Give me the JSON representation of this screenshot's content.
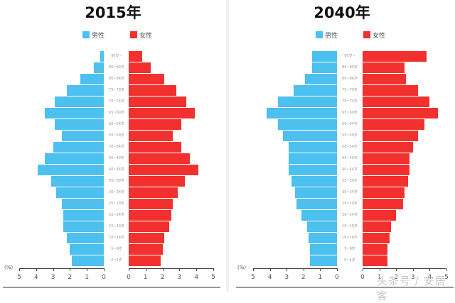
{
  "chart_data": [
    {
      "type": "bar",
      "subtype": "population-pyramid",
      "title": "2015年",
      "legend": [
        "男性",
        "女性"
      ],
      "colors": {
        "male": "#4cc0ee",
        "female": "#f2312e"
      },
      "unit_label": "(%)",
      "xlim": [
        0,
        5
      ],
      "ticks": [
        5,
        4,
        3,
        2,
        1,
        0,
        0,
        1,
        2,
        3,
        4,
        5
      ],
      "categories": [
        "90岁~",
        "85~89岁",
        "80~84岁",
        "75~79岁",
        "70~74岁",
        "65~69岁",
        "60~64岁",
        "55~59岁",
        "50~54岁",
        "45~49岁",
        "40~44岁",
        "35~39岁",
        "30~34岁",
        "25~29岁",
        "20~24岁",
        "15~19岁",
        "10~14岁",
        "5~9岁",
        "0~4岁"
      ],
      "series": [
        {
          "name": "男性",
          "values": [
            0.2,
            0.6,
            1.4,
            2.2,
            2.9,
            3.5,
            2.9,
            2.5,
            3.0,
            3.5,
            3.9,
            3.1,
            2.8,
            2.5,
            2.4,
            2.4,
            2.2,
            2.0,
            1.9
          ]
        },
        {
          "name": "女性",
          "values": [
            0.8,
            1.3,
            2.1,
            2.8,
            3.4,
            3.9,
            3.1,
            2.6,
            3.1,
            3.6,
            4.1,
            3.3,
            2.9,
            2.6,
            2.5,
            2.4,
            2.1,
            2.0,
            1.9
          ]
        }
      ]
    },
    {
      "type": "bar",
      "subtype": "population-pyramid",
      "title": "2040年",
      "legend": [
        "男性",
        "女性"
      ],
      "colors": {
        "male": "#4cc0ee",
        "female": "#f2312e"
      },
      "unit_label": "(%)",
      "xlim": [
        0,
        5
      ],
      "ticks": [
        5,
        4,
        3,
        2,
        1,
        0,
        0,
        1,
        2,
        3,
        4,
        5
      ],
      "categories": [
        "90岁~",
        "85~89岁",
        "80~84岁",
        "75~79岁",
        "70~74岁",
        "65~69岁",
        "60~64岁",
        "55~59岁",
        "50~54岁",
        "45~49岁",
        "40~44岁",
        "35~39岁",
        "30~34岁",
        "25~29岁",
        "20~24岁",
        "15~19岁",
        "10~14岁",
        "5~9岁",
        "0~4岁"
      ],
      "series": [
        {
          "name": "男性",
          "values": [
            1.5,
            1.5,
            1.9,
            2.6,
            3.5,
            4.2,
            3.5,
            3.2,
            2.9,
            2.9,
            2.9,
            2.7,
            2.5,
            2.4,
            2.1,
            1.8,
            1.7,
            1.6,
            1.6
          ]
        },
        {
          "name": "女性",
          "values": [
            3.8,
            2.5,
            2.6,
            3.3,
            4.0,
            4.5,
            3.7,
            3.3,
            3.0,
            2.8,
            2.8,
            2.7,
            2.5,
            2.4,
            2.0,
            1.7,
            1.6,
            1.5,
            1.5
          ]
        }
      ]
    }
  ],
  "labels": {
    "left_title": "2015年",
    "right_title": "2040年",
    "male": "男性",
    "female": "女性",
    "unit": "(%)",
    "watermark": "头条号 / 安居客"
  }
}
